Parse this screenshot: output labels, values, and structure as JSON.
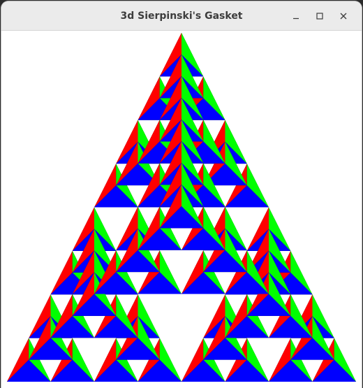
{
  "window": {
    "title": "3d Sierpinski's Gasket",
    "controls": {
      "minimize_icon": "minimize-icon",
      "maximize_icon": "maximize-icon",
      "close_icon": "close-icon"
    }
  },
  "gasket": {
    "subdivision_levels": 3,
    "face_colors": {
      "left": "#ff0000",
      "right": "#00ff00",
      "bottom": "#0000ff",
      "back": "#000000"
    },
    "background": "#ffffff"
  }
}
